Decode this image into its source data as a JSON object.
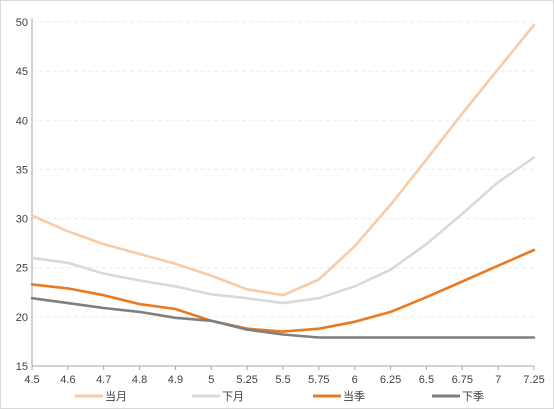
{
  "chart_data": {
    "type": "line",
    "x": [
      "4.5",
      "4.6",
      "4.7",
      "4.8",
      "4.9",
      "5",
      "5.25",
      "5.5",
      "5.75",
      "6",
      "6.25",
      "6.5",
      "6.75",
      "7",
      "7.25"
    ],
    "ylim": [
      15,
      50
    ],
    "yticks": [
      15,
      20,
      25,
      30,
      35,
      40,
      45,
      50
    ],
    "grid": true,
    "legend_position": "bottom",
    "series": [
      {
        "name": "当月",
        "color": "#f8cba4",
        "values": [
          30.3,
          28.7,
          27.4,
          26.4,
          25.4,
          24.2,
          22.8,
          22.2,
          23.8,
          27.2,
          31.4,
          36.0,
          40.7,
          45.2,
          49.7
        ]
      },
      {
        "name": "下月",
        "color": "#d9d9d9",
        "values": [
          26.0,
          25.5,
          24.4,
          23.7,
          23.1,
          22.3,
          21.9,
          21.4,
          21.9,
          23.1,
          24.8,
          27.4,
          30.5,
          33.7,
          36.2
        ]
      },
      {
        "name": "当季",
        "color": "#e97a21",
        "values": [
          23.3,
          22.9,
          22.2,
          21.3,
          20.8,
          19.6,
          18.8,
          18.5,
          18.8,
          19.5,
          20.5,
          22.0,
          23.6,
          25.2,
          26.8
        ]
      },
      {
        "name": "下季",
        "color": "#7f7f7f",
        "values": [
          21.9,
          21.4,
          20.9,
          20.5,
          19.9,
          19.6,
          18.7,
          18.2,
          17.9,
          17.9,
          17.9,
          17.9,
          17.9,
          17.9,
          17.9
        ]
      }
    ]
  }
}
